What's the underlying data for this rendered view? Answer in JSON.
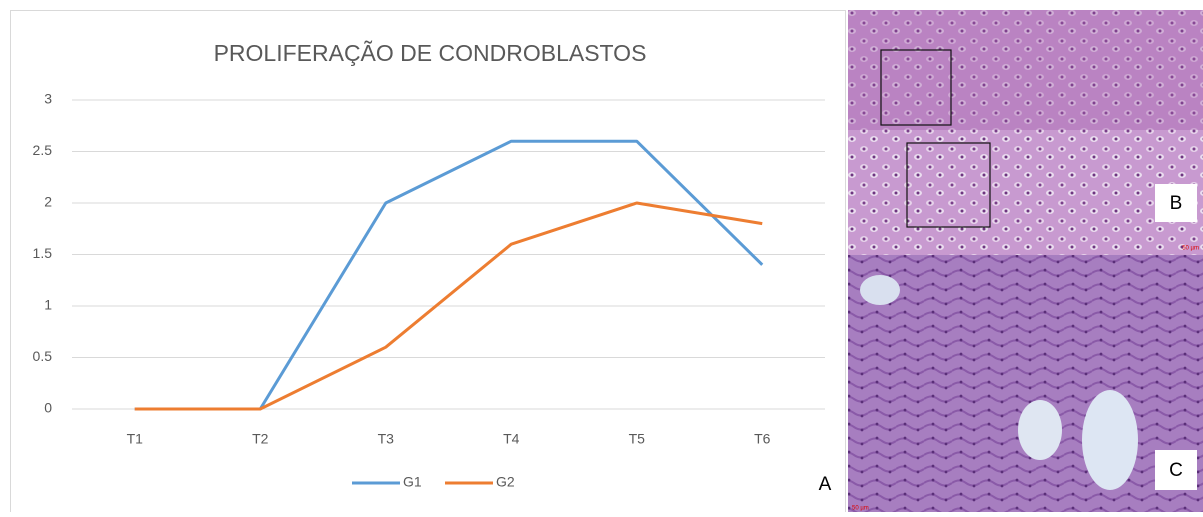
{
  "chart_data": {
    "type": "line",
    "title": "PROLIFERAÇÃO DE CONDROBLASTOS",
    "categories": [
      "T1",
      "T2",
      "T3",
      "T4",
      "T5",
      "T6"
    ],
    "series": [
      {
        "name": "G1",
        "color": "#5b9bd5",
        "values": [
          0,
          0,
          2,
          2.6,
          2.6,
          1.4
        ]
      },
      {
        "name": "G2",
        "color": "#ed7d31",
        "values": [
          0,
          0,
          0.6,
          1.6,
          2,
          1.8
        ]
      }
    ],
    "ylim": [
      0,
      3
    ],
    "yticks": [
      0,
      0.5,
      1,
      1.5,
      2,
      2.5,
      3
    ],
    "grid": true,
    "legend": "bottom"
  },
  "figure": {
    "chart_label": "A",
    "panels": [
      {
        "label": "B",
        "scale": "50 µm"
      },
      {
        "label": "C",
        "scale": "50 µm"
      }
    ]
  }
}
